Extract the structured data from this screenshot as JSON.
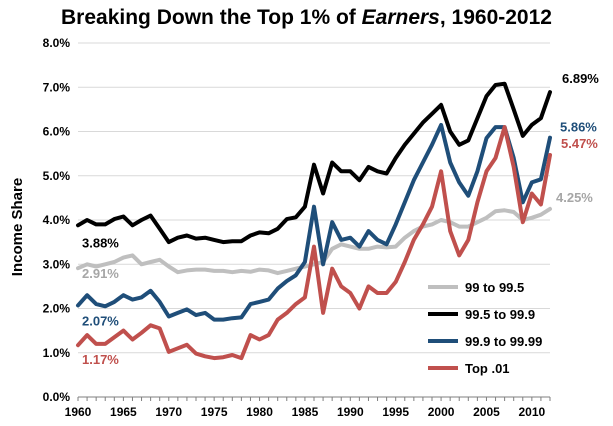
{
  "chart_data": {
    "type": "line",
    "title_main": "Breaking Down the Top 1% of ",
    "title_italic": "Earners",
    "title_tail": ", 1960-2012",
    "ylabel": "Income Share",
    "xlabel": "",
    "xlim": [
      1960,
      2012
    ],
    "ylim": [
      0,
      8
    ],
    "x_ticks": [
      "1960",
      "1965",
      "1970",
      "1975",
      "1980",
      "1985",
      "1990",
      "1995",
      "2000",
      "2005",
      "2010"
    ],
    "y_ticks": [
      "0.0%",
      "1.0%",
      "2.0%",
      "3.0%",
      "4.0%",
      "5.0%",
      "6.0%",
      "7.0%",
      "8.0%"
    ],
    "grid": "horizontal",
    "legend_position": "bottom-right",
    "x": [
      1960,
      1961,
      1962,
      1963,
      1964,
      1965,
      1966,
      1967,
      1968,
      1969,
      1970,
      1971,
      1972,
      1973,
      1974,
      1975,
      1976,
      1977,
      1978,
      1979,
      1980,
      1981,
      1982,
      1983,
      1984,
      1985,
      1986,
      1987,
      1988,
      1989,
      1990,
      1991,
      1992,
      1993,
      1994,
      1995,
      1996,
      1997,
      1998,
      1999,
      2000,
      2001,
      2002,
      2003,
      2004,
      2005,
      2006,
      2007,
      2008,
      2009,
      2010,
      2011,
      2012
    ],
    "series": [
      {
        "name": "99 to 99.5",
        "color": "#bfbfbf",
        "values": [
          2.91,
          3.0,
          2.95,
          3.0,
          3.05,
          3.15,
          3.2,
          3.0,
          3.05,
          3.1,
          2.95,
          2.82,
          2.86,
          2.88,
          2.88,
          2.85,
          2.85,
          2.82,
          2.85,
          2.83,
          2.88,
          2.86,
          2.8,
          2.85,
          2.9,
          2.95,
          3.0,
          3.05,
          3.35,
          3.45,
          3.4,
          3.35,
          3.35,
          3.4,
          3.38,
          3.4,
          3.6,
          3.75,
          3.85,
          3.9,
          4.0,
          3.95,
          3.85,
          3.85,
          3.95,
          4.05,
          4.2,
          4.22,
          4.18,
          4.0,
          4.05,
          4.12,
          4.25
        ]
      },
      {
        "name": "99.5 to 99.9",
        "color": "#000000",
        "values": [
          3.88,
          4.0,
          3.9,
          3.9,
          4.02,
          4.08,
          3.88,
          4.0,
          4.1,
          3.8,
          3.5,
          3.6,
          3.65,
          3.58,
          3.6,
          3.55,
          3.5,
          3.52,
          3.52,
          3.65,
          3.72,
          3.7,
          3.8,
          4.02,
          4.06,
          4.3,
          5.25,
          4.6,
          5.3,
          5.1,
          5.1,
          4.9,
          5.2,
          5.1,
          5.05,
          5.4,
          5.7,
          5.95,
          6.2,
          6.4,
          6.6,
          6.0,
          5.7,
          5.8,
          6.3,
          6.8,
          7.05,
          7.08,
          6.5,
          5.9,
          6.15,
          6.3,
          6.89
        ]
      },
      {
        "name": "99.9 to 99.99",
        "color": "#1f4e79",
        "values": [
          2.07,
          2.3,
          2.1,
          2.05,
          2.15,
          2.3,
          2.2,
          2.25,
          2.4,
          2.15,
          1.82,
          1.9,
          1.98,
          1.85,
          1.9,
          1.75,
          1.75,
          1.78,
          1.8,
          2.1,
          2.15,
          2.2,
          2.45,
          2.62,
          2.75,
          3.05,
          4.3,
          3.0,
          3.95,
          3.55,
          3.6,
          3.4,
          3.75,
          3.55,
          3.45,
          3.9,
          4.4,
          4.9,
          5.3,
          5.7,
          6.15,
          5.3,
          4.85,
          4.55,
          5.1,
          5.85,
          6.1,
          6.1,
          5.4,
          4.4,
          4.85,
          4.92,
          5.86
        ]
      },
      {
        "name": "Top .01",
        "color": "#c0504d",
        "values": [
          1.17,
          1.4,
          1.2,
          1.2,
          1.35,
          1.5,
          1.3,
          1.45,
          1.62,
          1.55,
          1.02,
          1.1,
          1.18,
          0.98,
          0.92,
          0.88,
          0.9,
          0.95,
          0.88,
          1.4,
          1.3,
          1.4,
          1.75,
          1.9,
          2.1,
          2.25,
          3.4,
          1.9,
          2.9,
          2.5,
          2.35,
          2.0,
          2.5,
          2.35,
          2.35,
          2.6,
          3.05,
          3.55,
          3.9,
          4.3,
          5.1,
          3.75,
          3.2,
          3.55,
          4.4,
          5.1,
          5.4,
          6.1,
          5.2,
          3.95,
          4.6,
          4.35,
          5.47
        ]
      }
    ],
    "data_labels": [
      {
        "series": 1,
        "end": "start",
        "text": "3.88%"
      },
      {
        "series": 0,
        "end": "start",
        "text": "2.91%"
      },
      {
        "series": 2,
        "end": "start",
        "text": "2.07%"
      },
      {
        "series": 3,
        "end": "start",
        "text": "1.17%"
      },
      {
        "series": 1,
        "end": "end",
        "text": "6.89%"
      },
      {
        "series": 2,
        "end": "end",
        "text": "5.86%"
      },
      {
        "series": 3,
        "end": "end",
        "text": "5.47%"
      },
      {
        "series": 0,
        "end": "end",
        "text": "4.25%"
      }
    ]
  }
}
